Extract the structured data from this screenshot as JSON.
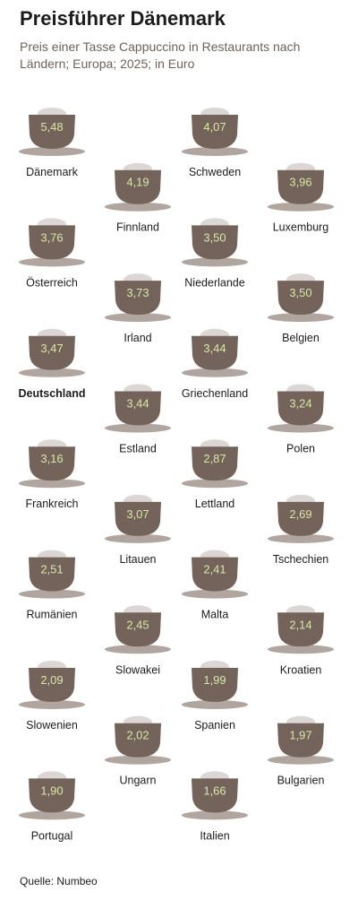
{
  "header": {
    "title": "Preisführer Dänemark",
    "subtitle": "Preis einer Tasse Cappuccino in Restaurants nach Ländern; Europa; 2025; in Euro"
  },
  "footer": {
    "source": "Quelle: Numbeo"
  },
  "colors": {
    "cup": "#74635a",
    "saucer": "#b0a59f",
    "foam": "#dcd7d4",
    "value_text": "#d6e8a6",
    "label_text": "#1c1c1c"
  },
  "chart_data": {
    "type": "pictogram",
    "title": "Preisführer Dänemark",
    "subtitle": "Preis einer Tasse Cappuccino in Restaurants nach Ländern; Europa; 2025; in Euro",
    "unit": "Euro",
    "highlight": "Deutschland",
    "items": [
      {
        "country": "Dänemark",
        "value": "5,48"
      },
      {
        "country": "Schweden",
        "value": "4,07"
      },
      {
        "country": "Finnland",
        "value": "4,19"
      },
      {
        "country": "Luxemburg",
        "value": "3,96"
      },
      {
        "country": "Österreich",
        "value": "3,76"
      },
      {
        "country": "Niederlande",
        "value": "3,50"
      },
      {
        "country": "Irland",
        "value": "3,73"
      },
      {
        "country": "Belgien",
        "value": "3,50"
      },
      {
        "country": "Deutschland",
        "value": "3,47"
      },
      {
        "country": "Griechenland",
        "value": "3,44"
      },
      {
        "country": "Estland",
        "value": "3,44"
      },
      {
        "country": "Polen",
        "value": "3,24"
      },
      {
        "country": "Frankreich",
        "value": "3,16"
      },
      {
        "country": "Lettland",
        "value": "2,87"
      },
      {
        "country": "Litauen",
        "value": "3,07"
      },
      {
        "country": "Tschechien",
        "value": "2,69"
      },
      {
        "country": "Rumänien",
        "value": "2,51"
      },
      {
        "country": "Malta",
        "value": "2,41"
      },
      {
        "country": "Slowakei",
        "value": "2,45"
      },
      {
        "country": "Kroatien",
        "value": "2,14"
      },
      {
        "country": "Slowenien",
        "value": "2,09"
      },
      {
        "country": "Spanien",
        "value": "1,99"
      },
      {
        "country": "Ungarn",
        "value": "2,02"
      },
      {
        "country": "Bulgarien",
        "value": "1,97"
      },
      {
        "country": "Portugal",
        "value": "1,90"
      },
      {
        "country": "Italien",
        "value": "1,66"
      }
    ]
  }
}
